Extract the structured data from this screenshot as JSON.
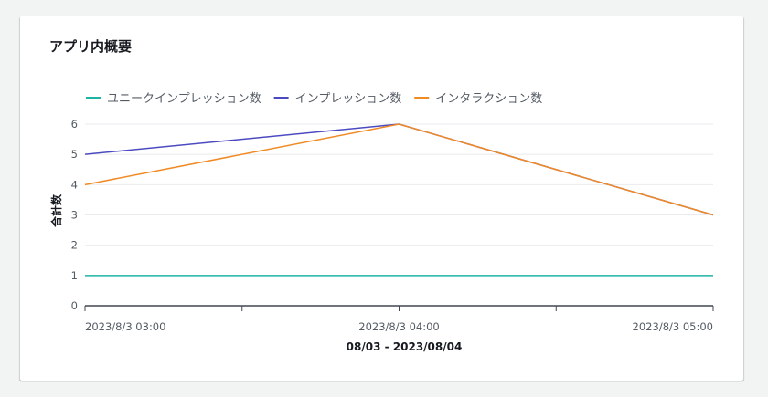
{
  "card": {
    "title": "アプリ内概要"
  },
  "chart_data": {
    "type": "line",
    "x": [
      "2023/8/3 03:00",
      "2023/8/3 04:00",
      "2023/8/3 05:00"
    ],
    "series": [
      {
        "name": "ユニークインプレッション数",
        "color": "#1eb4a4",
        "values": [
          1,
          1,
          1
        ]
      },
      {
        "name": "インプレッション数",
        "color": "#4c4ac0",
        "values": [
          5,
          6,
          3
        ]
      },
      {
        "name": "インタラクション数",
        "color": "#f08a24",
        "values": [
          4,
          6,
          3
        ]
      }
    ],
    "ylabel": "合計数",
    "xlabel": "08/03 - 2023/08/04",
    "ylim": [
      0,
      6
    ],
    "yticks": [
      0,
      1,
      2,
      3,
      4,
      5,
      6
    ],
    "grid": true,
    "legend": "top-left"
  }
}
